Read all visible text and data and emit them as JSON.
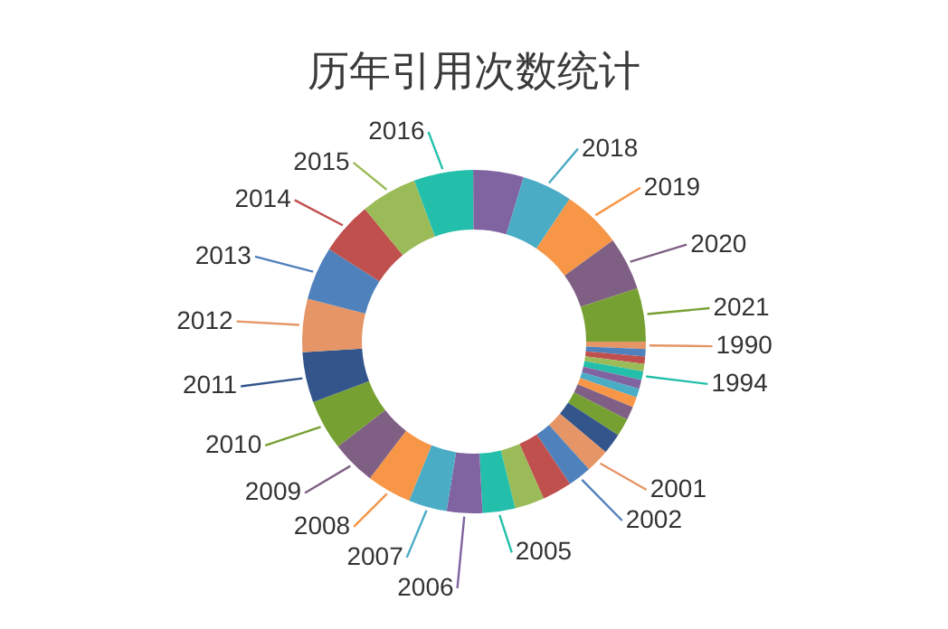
{
  "chart_data": {
    "type": "donut",
    "title": "历年引用次数统计",
    "categories": [
      "1990",
      null,
      null,
      null,
      "1994",
      null,
      null,
      null,
      null,
      null,
      null,
      "2001",
      "2002",
      null,
      null,
      "2005",
      "2006",
      "2007",
      "2008",
      "2009",
      "2010",
      "2011",
      "2012",
      "2013",
      "2014",
      "2015",
      "2016",
      null,
      "2018",
      "2019",
      "2020",
      "2021"
    ],
    "values": [
      0.69,
      0.69,
      0.69,
      0.69,
      0.83,
      0.83,
      0.83,
      0.97,
      1.25,
      1.67,
      1.94,
      2.22,
      2.22,
      2.78,
      2.78,
      3.06,
      3.33,
      3.61,
      4.17,
      4.17,
      4.72,
      4.72,
      5,
      5,
      5,
      5.28,
      5.56,
      4.72,
      4.72,
      5.56,
      5,
      5
    ],
    "colors": [
      "#E59566",
      "#4F81BC",
      "#C0504E",
      "#9BBB58",
      "#23BFAA",
      "#8064A1",
      "#4AACC5",
      "#F79647",
      "#7F6084",
      "#77A033",
      "#33558B",
      "#E59566",
      "#4F81BC",
      "#C0504E",
      "#9BBB58",
      "#23BFAA",
      "#8064A1",
      "#4AACC5",
      "#F79647",
      "#7F6084",
      "#77A033",
      "#33558B",
      "#E59566",
      "#4F81BC",
      "#C0504E",
      "#9BBB58",
      "#23BFAA",
      "#8064A1",
      "#4AACC5",
      "#F79647",
      "#7F6084",
      "#77A033"
    ]
  }
}
